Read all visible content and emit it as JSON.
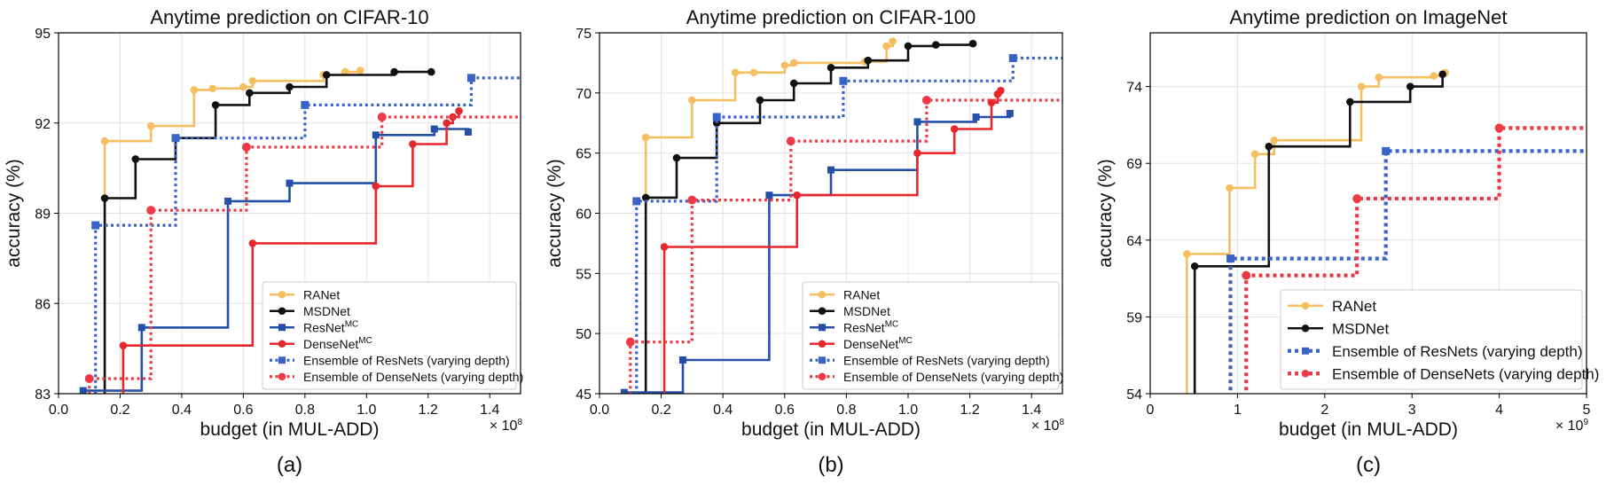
{
  "colors": {
    "ranet": "#F5BE60",
    "msdnet": "#111111",
    "resnet": "#2650A8",
    "densenet": "#E8272C",
    "ens_resnet": "#3A63C6",
    "ens_densenet": "#EE3A44"
  },
  "chart_data": [
    {
      "type": "line",
      "panel_label": "(a)",
      "title": "Anytime prediction on CIFAR-10",
      "xlabel": "budget (in MUL-ADD)",
      "ylabel": "accuracy (%)",
      "x_exponent_label": "× 10",
      "x_exponent": "8",
      "xlim": [
        0.0,
        1.5
      ],
      "ylim": [
        83,
        95
      ],
      "xticks": [
        "0.0",
        "0.2",
        "0.4",
        "0.6",
        "0.8",
        "1.0",
        "1.2",
        "1.4"
      ],
      "yticks": [
        "83",
        "86",
        "89",
        "92",
        "95"
      ],
      "grid": true,
      "legend_placement": "lower-right",
      "series": [
        {
          "key": "ranet",
          "name": "RANet",
          "name_sup": "",
          "style": "solid",
          "marker": "circle",
          "step": true,
          "x": [
            0.15,
            0.3,
            0.44,
            0.5,
            0.6,
            0.63,
            0.86,
            0.93,
            0.98
          ],
          "y": [
            91.4,
            91.9,
            93.1,
            93.15,
            93.2,
            93.4,
            93.6,
            93.7,
            93.75
          ]
        },
        {
          "key": "msdnet",
          "name": "MSDNet",
          "name_sup": "",
          "style": "solid",
          "marker": "circle",
          "step": true,
          "x": [
            0.15,
            0.25,
            0.38,
            0.51,
            0.62,
            0.75,
            0.87,
            1.09,
            1.21
          ],
          "y": [
            89.5,
            90.8,
            91.5,
            92.6,
            93.0,
            93.2,
            93.6,
            93.7,
            93.7
          ]
        },
        {
          "key": "resnet",
          "name": "ResNet",
          "name_sup": "MC",
          "style": "solid",
          "marker": "square",
          "step": true,
          "x": [
            0.08,
            0.27,
            0.55,
            0.75,
            1.03,
            1.22,
            1.33
          ],
          "y": [
            83.1,
            85.2,
            89.4,
            90.0,
            91.6,
            91.8,
            91.7
          ]
        },
        {
          "key": "densenet",
          "name": "DenseNet",
          "name_sup": "MC",
          "style": "solid",
          "marker": "circle",
          "step": true,
          "x": [
            0.21,
            0.63,
            1.03,
            1.15,
            1.26,
            1.28,
            1.3
          ],
          "y": [
            84.6,
            88.0,
            89.9,
            91.3,
            92.0,
            92.2,
            92.4
          ]
        },
        {
          "key": "ens_resnet",
          "name": "Ensemble of ResNets (varying depth)",
          "name_sup": "",
          "style": "dotted",
          "marker": "square",
          "step": true,
          "x": [
            0.12,
            0.38,
            0.8,
            1.34
          ],
          "x_end": 1.5,
          "y": [
            88.6,
            91.5,
            92.6,
            93.5
          ]
        },
        {
          "key": "ens_densenet",
          "name": "Ensemble of DenseNets (varying depth)",
          "name_sup": "",
          "style": "dotted",
          "marker": "circle",
          "step": true,
          "x": [
            0.1,
            0.3,
            0.61,
            1.05
          ],
          "x_end": 1.5,
          "y": [
            83.5,
            89.1,
            91.2,
            92.2
          ]
        }
      ]
    },
    {
      "type": "line",
      "panel_label": "(b)",
      "title": "Anytime prediction on CIFAR-100",
      "xlabel": "budget (in MUL-ADD)",
      "ylabel": "accuracy (%)",
      "x_exponent_label": "× 10",
      "x_exponent": "8",
      "xlim": [
        0.0,
        1.5
      ],
      "ylim": [
        45,
        75
      ],
      "xticks": [
        "0.0",
        "0.2",
        "0.4",
        "0.6",
        "0.8",
        "1.0",
        "1.2",
        "1.4"
      ],
      "yticks": [
        "45",
        "50",
        "55",
        "60",
        "65",
        "70",
        "75"
      ],
      "grid": true,
      "legend_placement": "lower-right",
      "series": [
        {
          "key": "ranet",
          "name": "RANet",
          "name_sup": "",
          "style": "solid",
          "marker": "circle",
          "step": true,
          "x": [
            0.15,
            0.3,
            0.44,
            0.5,
            0.6,
            0.63,
            0.86,
            0.93,
            0.95
          ],
          "y": [
            66.3,
            69.4,
            71.7,
            71.7,
            72.3,
            72.5,
            72.6,
            73.9,
            74.3
          ]
        },
        {
          "key": "msdnet",
          "name": "MSDNet",
          "name_sup": "",
          "style": "solid",
          "marker": "circle",
          "step": true,
          "x": [
            0.15,
            0.25,
            0.38,
            0.52,
            0.63,
            0.75,
            0.87,
            1.0,
            1.09,
            1.21
          ],
          "y": [
            61.3,
            64.6,
            67.5,
            69.4,
            70.8,
            72.1,
            72.7,
            73.9,
            74.0,
            74.1
          ]
        },
        {
          "key": "resnet",
          "name": "ResNet",
          "name_sup": "MC",
          "style": "solid",
          "marker": "square",
          "step": true,
          "x": [
            0.08,
            0.27,
            0.55,
            0.75,
            1.03,
            1.22,
            1.33
          ],
          "y": [
            45.1,
            47.8,
            61.5,
            63.6,
            67.6,
            68.0,
            68.3
          ]
        },
        {
          "key": "densenet",
          "name": "DenseNet",
          "name_sup": "MC",
          "style": "solid",
          "marker": "circle",
          "step": true,
          "x": [
            0.21,
            0.64,
            1.03,
            1.15,
            1.27,
            1.29,
            1.3
          ],
          "y": [
            57.2,
            61.5,
            65.0,
            67.0,
            69.2,
            69.9,
            70.2
          ]
        },
        {
          "key": "ens_resnet",
          "name": "Ensemble of ResNets (varying depth)",
          "name_sup": "",
          "style": "dotted",
          "marker": "square",
          "step": true,
          "x": [
            0.12,
            0.38,
            0.79,
            1.34
          ],
          "x_end": 1.5,
          "y": [
            61.0,
            68.0,
            71.0,
            72.9
          ]
        },
        {
          "key": "ens_densenet",
          "name": "Ensemble of DenseNets (varying depth)",
          "name_sup": "",
          "style": "dotted",
          "marker": "circle",
          "step": true,
          "x": [
            0.1,
            0.3,
            0.62,
            1.06
          ],
          "x_end": 1.5,
          "y": [
            49.3,
            61.1,
            66.0,
            69.4
          ]
        }
      ]
    },
    {
      "type": "line",
      "panel_label": "(c)",
      "title": "Anytime prediction on ImageNet",
      "xlabel": "budget (in MUL-ADD)",
      "ylabel": "accuracy (%)",
      "x_exponent_label": "× 10",
      "x_exponent": "9",
      "xlim": [
        0,
        5
      ],
      "ylim": [
        54,
        77.5
      ],
      "xticks": [
        "0",
        "1",
        "2",
        "3",
        "4",
        "5"
      ],
      "yticks": [
        "54",
        "59",
        "64",
        "69",
        "74"
      ],
      "grid": true,
      "legend_placement": "lower-right",
      "series": [
        {
          "key": "ranet",
          "name": "RANet",
          "name_sup": "",
          "style": "solid",
          "marker": "circle",
          "step": true,
          "x": [
            0.42,
            0.91,
            1.2,
            1.42,
            2.42,
            2.62,
            3.25,
            3.38
          ],
          "y": [
            63.1,
            67.4,
            69.6,
            70.5,
            74.0,
            74.6,
            74.7,
            74.9
          ]
        },
        {
          "key": "msdnet",
          "name": "MSDNet",
          "name_sup": "",
          "style": "solid",
          "marker": "circle",
          "step": true,
          "x": [
            0.51,
            1.36,
            2.29,
            2.98,
            3.35
          ],
          "y": [
            62.3,
            70.1,
            73.0,
            74.0,
            74.8
          ]
        },
        {
          "key": "ens_resnet",
          "name": "Ensemble of ResNets (varying depth)",
          "name_sup": "",
          "style": "dotted",
          "marker": "square",
          "step": true,
          "x": [
            0.92,
            2.7
          ],
          "x_end": 5.0,
          "y": [
            62.8,
            69.8
          ]
        },
        {
          "key": "ens_densenet",
          "name": "Ensemble of DenseNets (varying depth)",
          "name_sup": "",
          "style": "dotted",
          "marker": "circle",
          "step": true,
          "x": [
            1.1,
            2.37,
            4.0
          ],
          "x_end": 5.0,
          "y": [
            61.7,
            66.7,
            71.3
          ]
        }
      ]
    }
  ]
}
